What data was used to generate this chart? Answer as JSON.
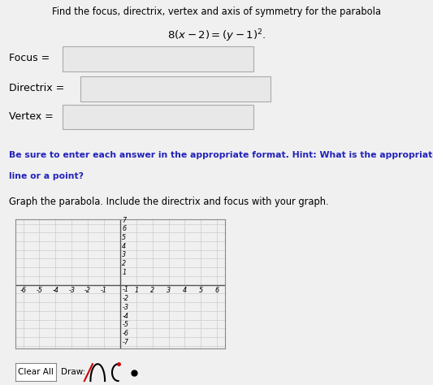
{
  "title_line1": "Find the focus, directrix, vertex and axis of symmetry for the parabola",
  "title_math": "$8(x-2)=(y-1)^{2}.$",
  "label_focus": "Focus =",
  "label_directrix": "Directrix =",
  "label_vertex": "Vertex =",
  "hint_line1": "Be sure to enter each answer in the appropriate format. Hint: What is the appropriate notation for a",
  "hint_line2": "line or a point?",
  "graph_label": "Graph the parabola. Include the directrix and focus with your graph.",
  "button_clear": "Clear All",
  "button_draw": "Draw:",
  "bg_color": "#f0f0f0",
  "grid_color": "#cccccc",
  "axis_color": "#555555",
  "hint_color": "#2222bb",
  "box_facecolor": "#e8e8e8",
  "box_edgecolor": "#aaaaaa",
  "x_min": -6,
  "x_max": 6,
  "y_min": -7,
  "y_max": 7,
  "fig_width": 5.33,
  "fig_height": 4.74,
  "dpi": 100
}
